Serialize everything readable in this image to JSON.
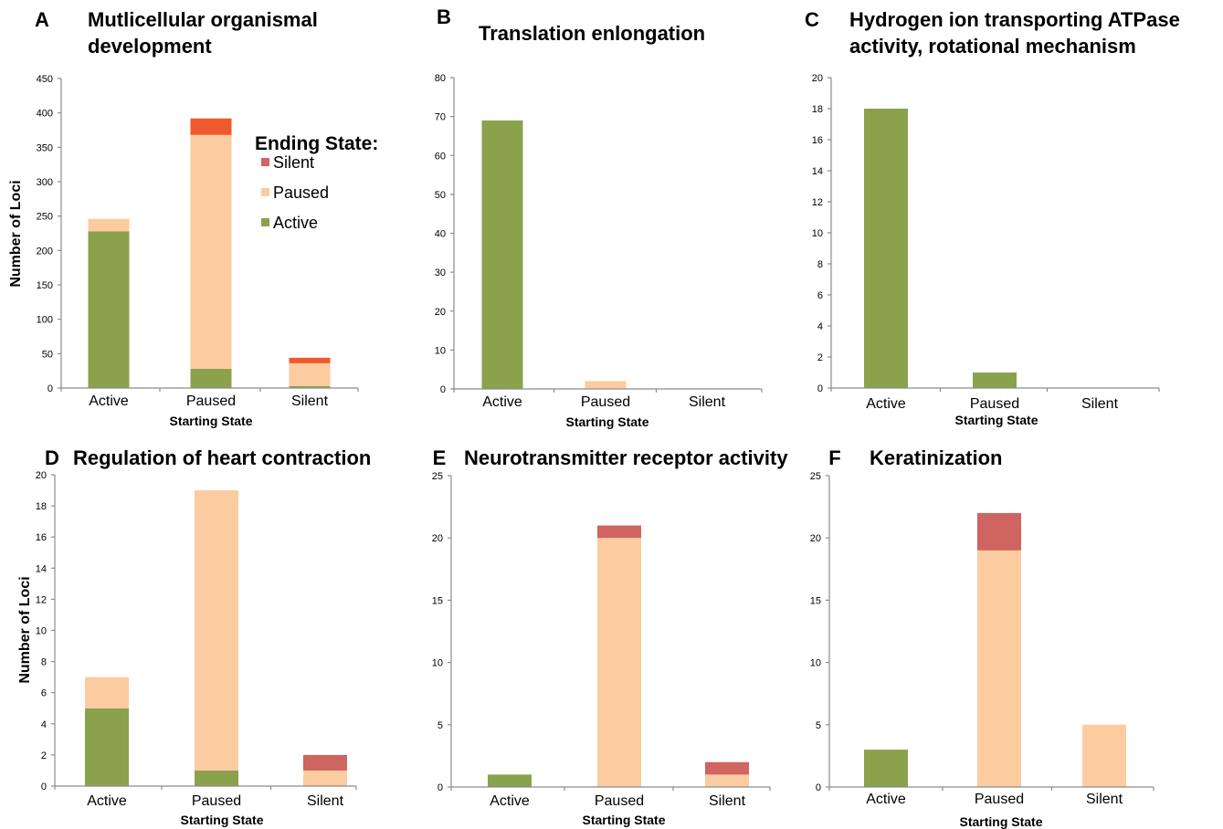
{
  "colors": {
    "Active": "#8ba24d",
    "Paused": "#fccba0",
    "Silent": "#cf6460",
    "SilentA": "#f0592b",
    "axis": "#8c8c8c"
  },
  "legend": {
    "title": "Ending State:",
    "items": [
      {
        "label": "Silent",
        "color": "#cf6460"
      },
      {
        "label": "Paused",
        "color": "#fccba0"
      },
      {
        "label": "Active",
        "color": "#8ba24d"
      }
    ]
  },
  "chart_data": [
    {
      "panel": "A",
      "type": "bar",
      "title": [
        "Mutlicellular organismal",
        "development"
      ],
      "xlabel": "Starting State",
      "ylabel": "Number of Loci",
      "categories": [
        "Active",
        "Paused",
        "Silent"
      ],
      "ylim": [
        0,
        450
      ],
      "yticks": [
        0,
        50,
        100,
        150,
        200,
        250,
        300,
        350,
        400,
        450
      ],
      "stacked": true,
      "series": [
        {
          "name": "Active",
          "values": [
            228,
            28,
            3
          ]
        },
        {
          "name": "Paused",
          "values": [
            18,
            340,
            33
          ]
        },
        {
          "name": "Silent",
          "values": [
            0,
            24,
            8
          ]
        }
      ]
    },
    {
      "panel": "B",
      "type": "bar",
      "title": [
        "Translation enlongation"
      ],
      "xlabel": "Starting State",
      "ylabel": "",
      "categories": [
        "Active",
        "Paused",
        "Silent"
      ],
      "ylim": [
        0,
        80
      ],
      "yticks": [
        0,
        10,
        20,
        30,
        40,
        50,
        60,
        70,
        80
      ],
      "stacked": true,
      "series": [
        {
          "name": "Active",
          "values": [
            69,
            0,
            0
          ]
        },
        {
          "name": "Paused",
          "values": [
            0,
            2,
            0
          ]
        },
        {
          "name": "Silent",
          "values": [
            0,
            0,
            0
          ]
        }
      ]
    },
    {
      "panel": "C",
      "type": "bar",
      "title": [
        "Hydrogen ion transporting ATPase",
        "activity, rotational mechanism"
      ],
      "xlabel": "Starting State",
      "ylabel": "",
      "categories": [
        "Active",
        "Paused",
        "Silent"
      ],
      "ylim": [
        0,
        20
      ],
      "yticks": [
        0,
        2,
        4,
        6,
        8,
        10,
        12,
        14,
        16,
        18,
        20
      ],
      "stacked": true,
      "series": [
        {
          "name": "Active",
          "values": [
            18,
            1,
            0
          ]
        },
        {
          "name": "Paused",
          "values": [
            0,
            0,
            0
          ]
        },
        {
          "name": "Silent",
          "values": [
            0,
            0,
            0
          ]
        }
      ]
    },
    {
      "panel": "D",
      "type": "bar",
      "title": [
        "Regulation of heart contraction"
      ],
      "xlabel": "Starting State",
      "ylabel": "Number of Loci",
      "categories": [
        "Active",
        "Paused",
        "Silent"
      ],
      "ylim": [
        0,
        20
      ],
      "yticks": [
        0,
        2,
        4,
        6,
        8,
        10,
        12,
        14,
        16,
        18,
        20
      ],
      "stacked": true,
      "series": [
        {
          "name": "Active",
          "values": [
            5,
            1,
            0
          ]
        },
        {
          "name": "Paused",
          "values": [
            2,
            18,
            1
          ]
        },
        {
          "name": "Silent",
          "values": [
            0,
            0,
            1
          ]
        }
      ]
    },
    {
      "panel": "E",
      "type": "bar",
      "title": [
        "Neurotransmitter receptor activity"
      ],
      "xlabel": "Starting State",
      "ylabel": "",
      "categories": [
        "Active",
        "Paused",
        "Silent"
      ],
      "ylim": [
        0,
        25
      ],
      "yticks": [
        0,
        5,
        10,
        15,
        20,
        25
      ],
      "stacked": true,
      "series": [
        {
          "name": "Active",
          "values": [
            1,
            0,
            0
          ]
        },
        {
          "name": "Paused",
          "values": [
            0,
            20,
            1
          ]
        },
        {
          "name": "Silent",
          "values": [
            0,
            1,
            1
          ]
        }
      ]
    },
    {
      "panel": "F",
      "type": "bar",
      "title": [
        "Keratinization"
      ],
      "xlabel": "Starting State",
      "ylabel": "",
      "categories": [
        "Active",
        "Paused",
        "Silent"
      ],
      "ylim": [
        0,
        25
      ],
      "yticks": [
        0,
        5,
        10,
        15,
        20,
        25
      ],
      "stacked": true,
      "series": [
        {
          "name": "Active",
          "values": [
            3,
            0,
            0
          ]
        },
        {
          "name": "Paused",
          "values": [
            0,
            19,
            5
          ]
        },
        {
          "name": "Silent",
          "values": [
            0,
            3,
            0
          ]
        }
      ]
    }
  ]
}
